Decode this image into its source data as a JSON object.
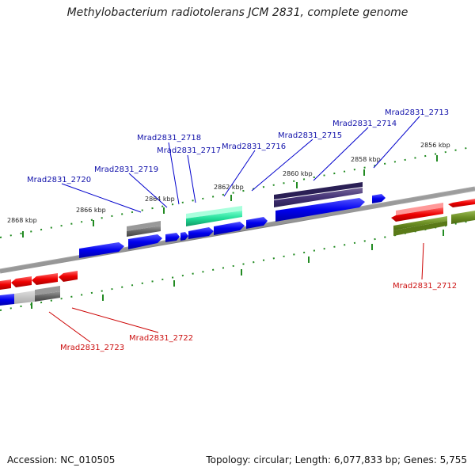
{
  "title": "Methylobacterium radiotolerans JCM 2831, complete genome",
  "accession": "Accession: NC_010505",
  "summary": "Topology: circular; Length: 6,077,833 bp; Genes: 5,755",
  "ticks": [
    "2868 kbp",
    "2866 kbp",
    "2864 kbp",
    "2862 kbp",
    "2860 kbp",
    "2858 kbp",
    "2856 kbp"
  ],
  "labels_top": [
    "Mrad2831_2713",
    "Mrad2831_2714",
    "Mrad2831_2715",
    "Mrad2831_2716",
    "Mrad2831_2717",
    "Mrad2831_2718",
    "Mrad2831_2719",
    "Mrad2831_2720"
  ],
  "labels_bottom": [
    "Mrad2831_2712",
    "Mrad2831_2722",
    "Mrad2831_2723"
  ],
  "colors": {
    "forward": "#0000ee",
    "reverse": "#ee0000",
    "gray": "#666666",
    "teal": "#22dd99",
    "purple": "#443377",
    "olive": "#6b8e23",
    "backbone": "#888888",
    "tick": "#228b22"
  }
}
